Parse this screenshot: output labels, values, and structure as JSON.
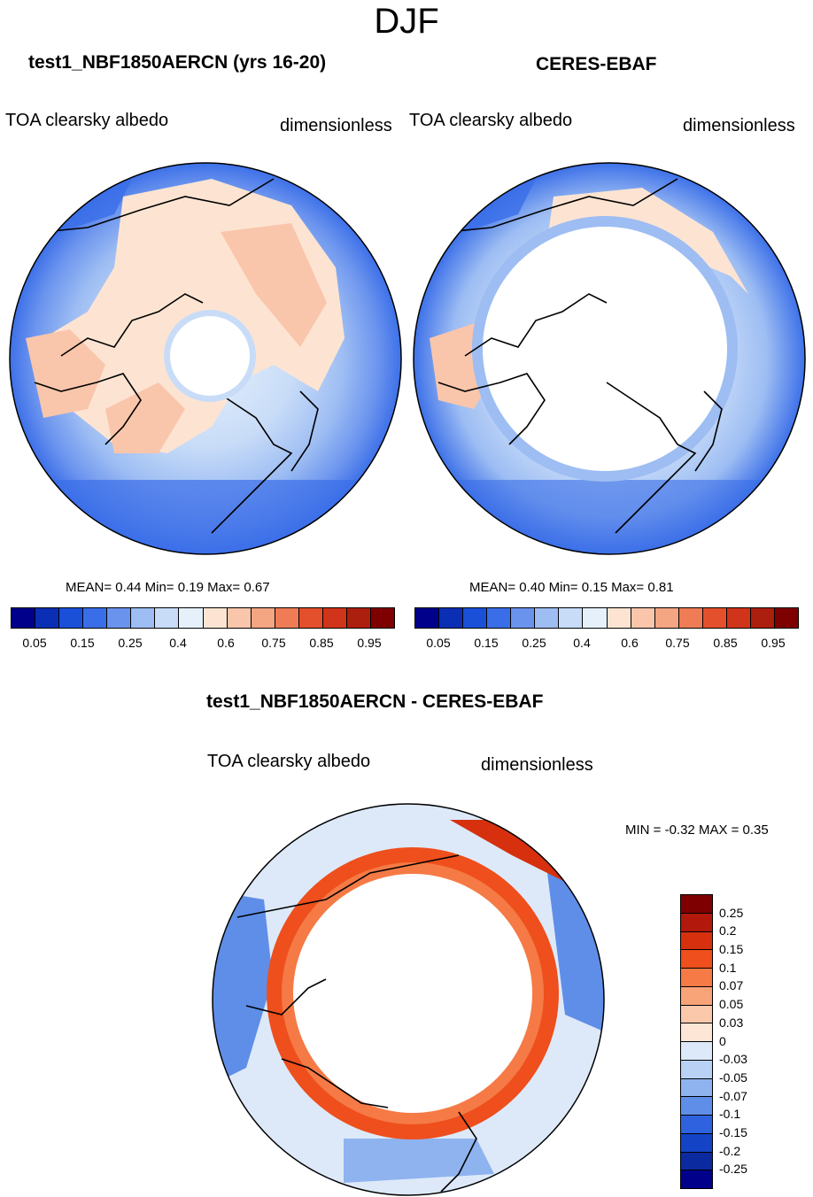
{
  "season": "DJF",
  "panels": {
    "model": {
      "title": "test1_NBF1850AERCN (yrs 16-20)",
      "variable": "TOA clearsky albedo",
      "units": "dimensionless",
      "stats": "MEAN=   0.44  Min=   0.19  Max=   0.67"
    },
    "obs": {
      "title": "CERES-EBAF",
      "variable": "TOA clearsky albedo",
      "units": "dimensionless",
      "stats": "MEAN=   0.40  Min=   0.15  Max=   0.81"
    },
    "diff": {
      "title": "test1_NBF1850AERCN - CERES-EBAF",
      "variable": "TOA clearsky albedo",
      "units": "dimensionless",
      "stats": "MIN =  -0.32 MAX =   0.35"
    }
  },
  "chart_data": [
    {
      "type": "heatmap",
      "title": "test1_NBF1850AERCN (yrs 16-20)",
      "projection": "polar-stereographic-north",
      "variable": "TOA clearsky albedo",
      "units": "dimensionless",
      "mean": 0.44,
      "min": 0.19,
      "max": 0.67,
      "colorbar_ticks": [
        "0.05",
        "0.15",
        "0.25",
        "0.4",
        "0.6",
        "0.75",
        "0.85",
        "0.95"
      ],
      "colorbar_colors": [
        "#00008b",
        "#0a2fb5",
        "#1a4fd8",
        "#3a6ee8",
        "#6a93ee",
        "#9dbdf3",
        "#c8dcf8",
        "#e6f0fb",
        "#fde4d2",
        "#f9c6ab",
        "#f4a582",
        "#ef7c55",
        "#e4502b",
        "#d0341a",
        "#ac1e0e",
        "#7f0000"
      ],
      "regions": {
        "polar_cap": "missing",
        "land_ice": "0.6-0.65",
        "ocean": "0.05-0.25"
      }
    },
    {
      "type": "heatmap",
      "title": "CERES-EBAF",
      "projection": "polar-stereographic-north",
      "variable": "TOA clearsky albedo",
      "units": "dimensionless",
      "mean": 0.4,
      "min": 0.15,
      "max": 0.81,
      "colorbar_ticks": [
        "0.05",
        "0.15",
        "0.25",
        "0.4",
        "0.6",
        "0.75",
        "0.85",
        "0.95"
      ],
      "colorbar_colors": [
        "#00008b",
        "#0a2fb5",
        "#1a4fd8",
        "#3a6ee8",
        "#6a93ee",
        "#9dbdf3",
        "#c8dcf8",
        "#e6f0fb",
        "#fde4d2",
        "#f9c6ab",
        "#f4a582",
        "#ef7c55",
        "#e4502b",
        "#d0341a",
        "#ac1e0e",
        "#7f0000"
      ],
      "regions": {
        "polar_cap": "missing",
        "land_ice": "0.4-0.6",
        "ocean": "0.05-0.25"
      }
    },
    {
      "type": "heatmap",
      "title": "test1_NBF1850AERCN - CERES-EBAF",
      "projection": "polar-stereographic-north",
      "variable": "TOA clearsky albedo",
      "units": "dimensionless",
      "min": -0.32,
      "max": 0.35,
      "colorbar_ticks": [
        "0.25",
        "0.2",
        "0.15",
        "0.1",
        "0.07",
        "0.05",
        "0.03",
        "0",
        "-0.03",
        "-0.05",
        "-0.07",
        "-0.1",
        "-0.15",
        "-0.2",
        "-0.25"
      ],
      "colorbar_colors": [
        "#7f0000",
        "#b2180b",
        "#d6300f",
        "#ee4f1c",
        "#f57a45",
        "#f9a379",
        "#fcc8ab",
        "#fde6d6",
        "#dde9f9",
        "#b8d1f4",
        "#8fb3ef",
        "#5f8ee8",
        "#2e62de",
        "#1443c5",
        "#0b2aa0",
        "#00008b"
      ],
      "regions": {
        "polar_cap": "missing",
        "ice_edge_ring": "0.1-0.25",
        "ocean": "-0.03 to 0.03"
      }
    }
  ]
}
